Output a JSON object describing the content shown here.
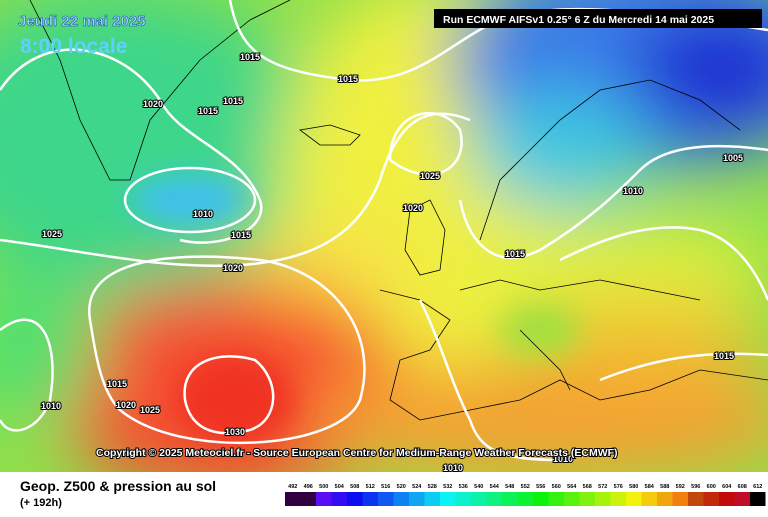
{
  "header": {
    "date": "Jeudi 22 mai 2025",
    "time": "8:00 locale",
    "run": "Run ECMWF AIFSv1 0.25° 6 Z du Mercredi 14 mai 2025"
  },
  "isobar_labels": [
    "1015",
    "1015",
    "1020",
    "1015",
    "1015",
    "1025",
    "1010",
    "1015",
    "1025",
    "1020",
    "1015",
    "1020",
    "1010",
    "1005",
    "1015",
    "1015",
    "1010",
    "1020",
    "1025",
    "1030",
    "1010",
    "1010"
  ],
  "copyright": "Copyright © 2025 Meteociel.fr - Source European Centre for Medium-Range Weather Forecasts (ECMWF)",
  "footer": {
    "title": "Geop. Z500 & pression au sol",
    "lead": "(+ 192h)"
  },
  "scale_labels": [
    492,
    496,
    500,
    504,
    508,
    512,
    516,
    520,
    524,
    528,
    532,
    536,
    540,
    544,
    548,
    552,
    556,
    560,
    564,
    568,
    572,
    576,
    580,
    584,
    588,
    592,
    596,
    600,
    604,
    608,
    612
  ]
}
